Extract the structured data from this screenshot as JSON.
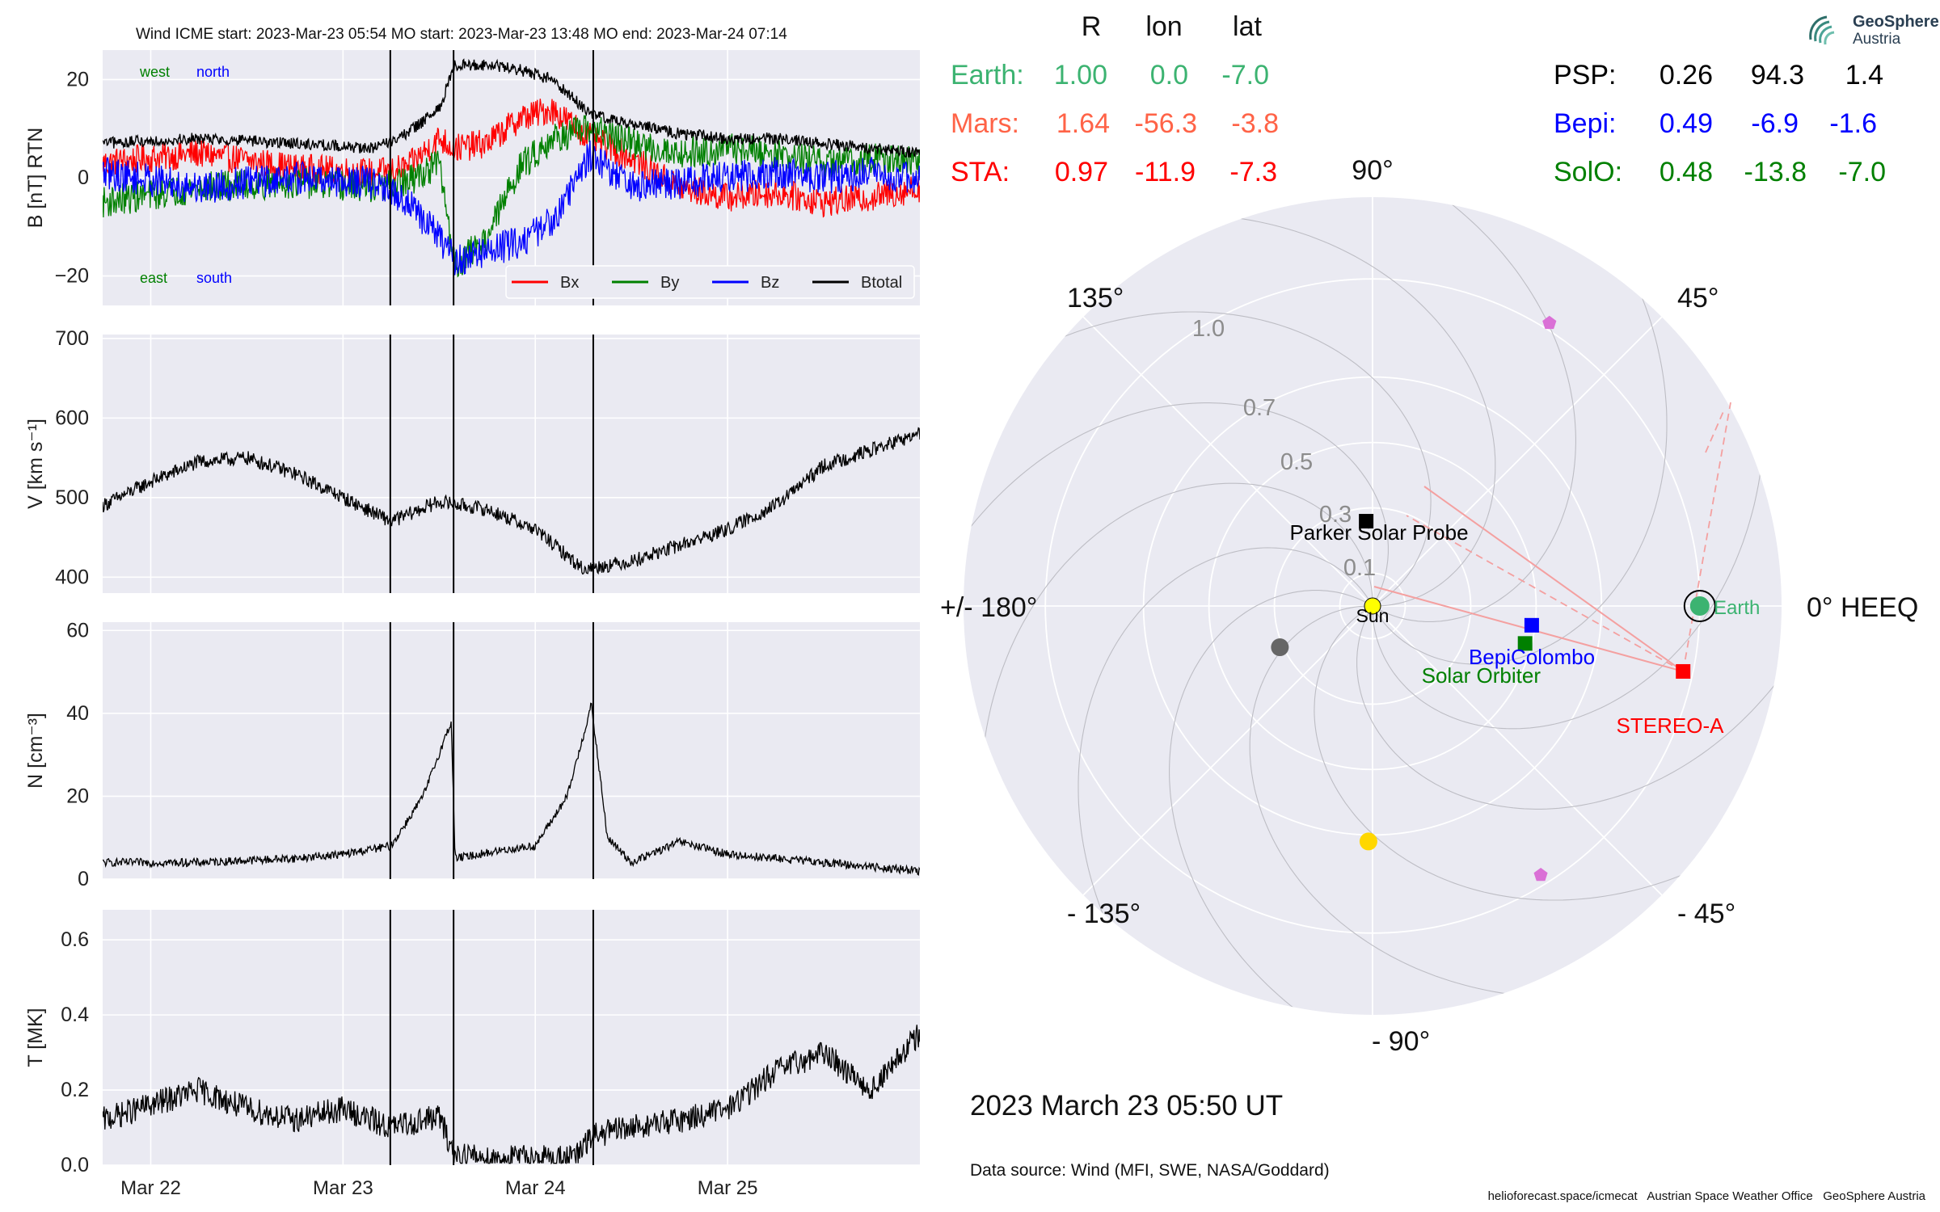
{
  "header": {
    "title": "Wind    ICME start: 2023-Mar-23 05:54   MO start: 2023-Mar-23 13:48   MO end: 2023-Mar-24 07:14"
  },
  "logo": {
    "line1": "GeoSphere",
    "line2": "Austria"
  },
  "timestamp": "2023 March 23  05:50 UT",
  "data_source": "Data source: Wind (MFI, SWE, NASA/Goddard)",
  "footer": "helioforecast.space/icmecat   Austrian Space Weather Office   GeoSphere Austria",
  "colors": {
    "axes_bg": "#eaeaf2",
    "grid": "#ffffff",
    "bx": "#ff0000",
    "by": "#008000",
    "bz": "#0000ff",
    "btotal": "#000000",
    "earth": "#3cb371",
    "mars": "#ff6347",
    "sta": "#ff0000",
    "psp": "#000000",
    "bepi": "#0000ff",
    "solo": "#008000",
    "sun": "#ffff00"
  },
  "chart_data": [
    {
      "type": "line",
      "panel": "magnetic_field",
      "ylabel": "B [nT] RTN",
      "ylim": [
        -26,
        26
      ],
      "yticks": [
        -20,
        0,
        20
      ],
      "xlim": [
        "2023-03-21T18:00",
        "2023-03-26T00:00"
      ],
      "xticks": [
        "Mar 22",
        "Mar 23",
        "Mar 24",
        "Mar 25"
      ],
      "grid": true,
      "legend_placement": "lower-right",
      "corner_labels": [
        {
          "text": "west",
          "color": "#008000"
        },
        {
          "text": "north",
          "color": "#0000ff"
        },
        {
          "text": "east",
          "color": "#008000"
        },
        {
          "text": "south",
          "color": "#0000ff"
        }
      ],
      "series": [
        {
          "name": "Bx",
          "color": "#ff0000",
          "x": [
            "03-21 18:00",
            "03-22 06:00",
            "03-22 18:00",
            "03-23 04:00",
            "03-23 08:00",
            "03-23 12:00",
            "03-23 14:00",
            "03-23 18:00",
            "03-23 22:00",
            "03-24 02:00",
            "03-24 07:00",
            "03-24 12:00",
            "03-24 18:00",
            "03-25 00:00",
            "03-25 06:00",
            "03-25 12:00",
            "03-25 18:00",
            "03-26 00:00"
          ],
          "y": [
            3,
            5,
            2,
            1,
            2,
            8,
            6,
            7,
            12,
            14,
            8,
            4,
            -2,
            -4,
            -3,
            -5,
            -4,
            -2
          ]
        },
        {
          "name": "By",
          "color": "#008000",
          "x": [
            "03-21 18:00",
            "03-22 06:00",
            "03-22 18:00",
            "03-23 04:00",
            "03-23 08:00",
            "03-23 12:00",
            "03-23 14:00",
            "03-23 18:00",
            "03-23 22:00",
            "03-24 02:00",
            "03-24 07:00",
            "03-24 12:00",
            "03-24 18:00",
            "03-25 00:00",
            "03-25 06:00",
            "03-25 12:00",
            "03-25 18:00",
            "03-26 00:00"
          ],
          "y": [
            -5,
            -2,
            -1,
            -2,
            -1,
            3,
            -18,
            -12,
            2,
            8,
            10,
            7,
            5,
            6,
            5,
            3,
            4,
            3
          ]
        },
        {
          "name": "Bz",
          "color": "#0000ff",
          "x": [
            "03-21 18:00",
            "03-22 06:00",
            "03-22 18:00",
            "03-23 04:00",
            "03-23 08:00",
            "03-23 12:00",
            "03-23 14:00",
            "03-23 18:00",
            "03-23 22:00",
            "03-24 02:00",
            "03-24 07:00",
            "03-24 12:00",
            "03-24 18:00",
            "03-25 00:00",
            "03-25 06:00",
            "03-25 12:00",
            "03-25 18:00",
            "03-26 00:00"
          ],
          "y": [
            1,
            -2,
            0,
            -1,
            -5,
            -12,
            -17,
            -15,
            -13,
            -9,
            5,
            -2,
            -1,
            0,
            1,
            0,
            1,
            0
          ]
        },
        {
          "name": "Btotal",
          "color": "#000000",
          "x": [
            "03-21 18:00",
            "03-22 06:00",
            "03-22 18:00",
            "03-23 04:00",
            "03-23 08:00",
            "03-23 12:00",
            "03-23 14:00",
            "03-23 18:00",
            "03-23 22:00",
            "03-24 02:00",
            "03-24 07:00",
            "03-24 12:00",
            "03-24 18:00",
            "03-25 00:00",
            "03-25 06:00",
            "03-25 12:00",
            "03-25 18:00",
            "03-26 00:00"
          ],
          "y": [
            7,
            8,
            7,
            6,
            9,
            14,
            23,
            23,
            22,
            20,
            13,
            11,
            9,
            8,
            8,
            7,
            6,
            5
          ]
        }
      ]
    },
    {
      "type": "line",
      "panel": "speed",
      "ylabel": "V [km s⁻¹]",
      "ylim": [
        380,
        705
      ],
      "yticks": [
        400,
        500,
        600,
        700
      ],
      "xlim": [
        "2023-03-21T18:00",
        "2023-03-26T00:00"
      ],
      "grid": true,
      "series": [
        {
          "name": "",
          "color": "#000000",
          "x": [
            "03-21 18:00",
            "03-22 00:00",
            "03-22 06:00",
            "03-22 12:00",
            "03-22 18:00",
            "03-23 00:00",
            "03-23 06:00",
            "03-23 12:00",
            "03-23 18:00",
            "03-24 00:00",
            "03-24 06:00",
            "03-24 12:00",
            "03-24 18:00",
            "03-25 00:00",
            "03-25 06:00",
            "03-25 12:00",
            "03-25 18:00",
            "03-26 00:00"
          ],
          "y": [
            490,
            520,
            545,
            550,
            530,
            500,
            470,
            495,
            485,
            460,
            410,
            420,
            440,
            460,
            490,
            540,
            560,
            580
          ]
        }
      ]
    },
    {
      "type": "line",
      "panel": "density",
      "ylabel": "N [cm⁻³]",
      "ylim": [
        0,
        62
      ],
      "yticks": [
        0,
        20,
        40,
        60
      ],
      "xlim": [
        "2023-03-21T18:00",
        "2023-03-26T00:00"
      ],
      "grid": true,
      "series": [
        {
          "name": "",
          "color": "#000000",
          "x": [
            "03-21 18:00",
            "03-22 06:00",
            "03-22 18:00",
            "03-23 00:00",
            "03-23 06:00",
            "03-23 10:00",
            "03-23 13:30",
            "03-23 14:00",
            "03-23 20:00",
            "03-24 00:00",
            "03-24 04:00",
            "03-24 07:00",
            "03-24 09:00",
            "03-24 12:00",
            "03-24 18:00",
            "03-25 00:00",
            "03-25 12:00",
            "03-26 00:00"
          ],
          "y": [
            4,
            4,
            5,
            6,
            8,
            20,
            38,
            5,
            7,
            8,
            20,
            42,
            10,
            4,
            9,
            6,
            4,
            2
          ]
        }
      ]
    },
    {
      "type": "line",
      "panel": "temperature",
      "ylabel": "T [MK]",
      "ylim": [
        0,
        0.68
      ],
      "yticks": [
        0.0,
        0.2,
        0.4,
        0.6
      ],
      "xlim": [
        "2023-03-21T18:00",
        "2023-03-26T00:00"
      ],
      "grid": true,
      "series": [
        {
          "name": "",
          "color": "#000000",
          "x": [
            "03-21 18:00",
            "03-22 00:00",
            "03-22 06:00",
            "03-22 12:00",
            "03-22 18:00",
            "03-23 00:00",
            "03-23 06:00",
            "03-23 12:00",
            "03-23 13:48",
            "03-23 18:00",
            "03-24 00:00",
            "03-24 05:00",
            "03-24 07:14",
            "03-24 12:00",
            "03-24 18:00",
            "03-25 00:00",
            "03-25 06:00",
            "03-25 12:00",
            "03-25 18:00",
            "03-26 00:00"
          ],
          "y": [
            0.12,
            0.16,
            0.2,
            0.15,
            0.12,
            0.15,
            0.1,
            0.13,
            0.03,
            0.02,
            0.02,
            0.02,
            0.08,
            0.1,
            0.12,
            0.15,
            0.25,
            0.3,
            0.2,
            0.35
          ]
        }
      ]
    },
    {
      "type": "scatter",
      "panel": "polar_positions",
      "coordinate_system": "HEEQ",
      "r_ticks": [
        "0.1",
        "0.3",
        "0.5",
        "0.7",
        "1.0"
      ],
      "angle_labels": [
        "0° HEEQ",
        "45°",
        "90°",
        "135°",
        "+/- 180°",
        "- 135°",
        "- 90°",
        "- 45°"
      ],
      "table_headers": [
        "R",
        "lon",
        "lat"
      ],
      "table": [
        {
          "name": "Earth:",
          "R": "1.00",
          "lon": "0.0",
          "lat": "-7.0",
          "color": "#3cb371"
        },
        {
          "name": "Mars:",
          "R": "1.64",
          "lon": "-56.3",
          "lat": "-3.8",
          "color": "#ff6347"
        },
        {
          "name": "STA:",
          "R": "0.97",
          "lon": "-11.9",
          "lat": "-7.3",
          "color": "#ff0000"
        },
        {
          "name": "PSP:",
          "R": "0.26",
          "lon": "94.3",
          "lat": "1.4",
          "color": "#000000"
        },
        {
          "name": "Bepi:",
          "R": "0.49",
          "lon": "-6.9",
          "lat": "-1.6",
          "color": "#0000ff"
        },
        {
          "name": "SolO:",
          "R": "0.48",
          "lon": "-13.8",
          "lat": "-7.0",
          "color": "#008000"
        }
      ],
      "points": [
        {
          "label": "Sun",
          "r": 0.0,
          "lon": 0.0,
          "marker": "circle",
          "color": "#ffff00"
        },
        {
          "label": "Earth",
          "r": 1.0,
          "lon": 0.0,
          "marker": "circle",
          "color": "#3cb371"
        },
        {
          "label": "STEREO-A",
          "r": 0.97,
          "lon": -11.9,
          "marker": "square",
          "color": "#ff0000"
        },
        {
          "label": "Parker Solar Probe",
          "r": 0.26,
          "lon": 94.3,
          "marker": "square",
          "color": "#000000"
        },
        {
          "label": "BepiColombo",
          "r": 0.49,
          "lon": -6.9,
          "marker": "square",
          "color": "#0000ff"
        },
        {
          "label": "Solar Orbiter",
          "r": 0.48,
          "lon": -13.8,
          "marker": "square",
          "color": "#008000"
        },
        {
          "label": "",
          "r": 0.31,
          "lon": -156,
          "marker": "circle",
          "color": "#666666"
        },
        {
          "label": "",
          "r": 0.72,
          "lon": -91,
          "marker": "circle",
          "color": "#ffd700"
        },
        {
          "label": "",
          "r": 1.02,
          "lon": 58,
          "marker": "pentagon",
          "color": "#da70d6"
        },
        {
          "label": "",
          "r": 0.97,
          "lon": -58,
          "marker": "pentagon",
          "color": "#da70d6"
        }
      ]
    }
  ]
}
